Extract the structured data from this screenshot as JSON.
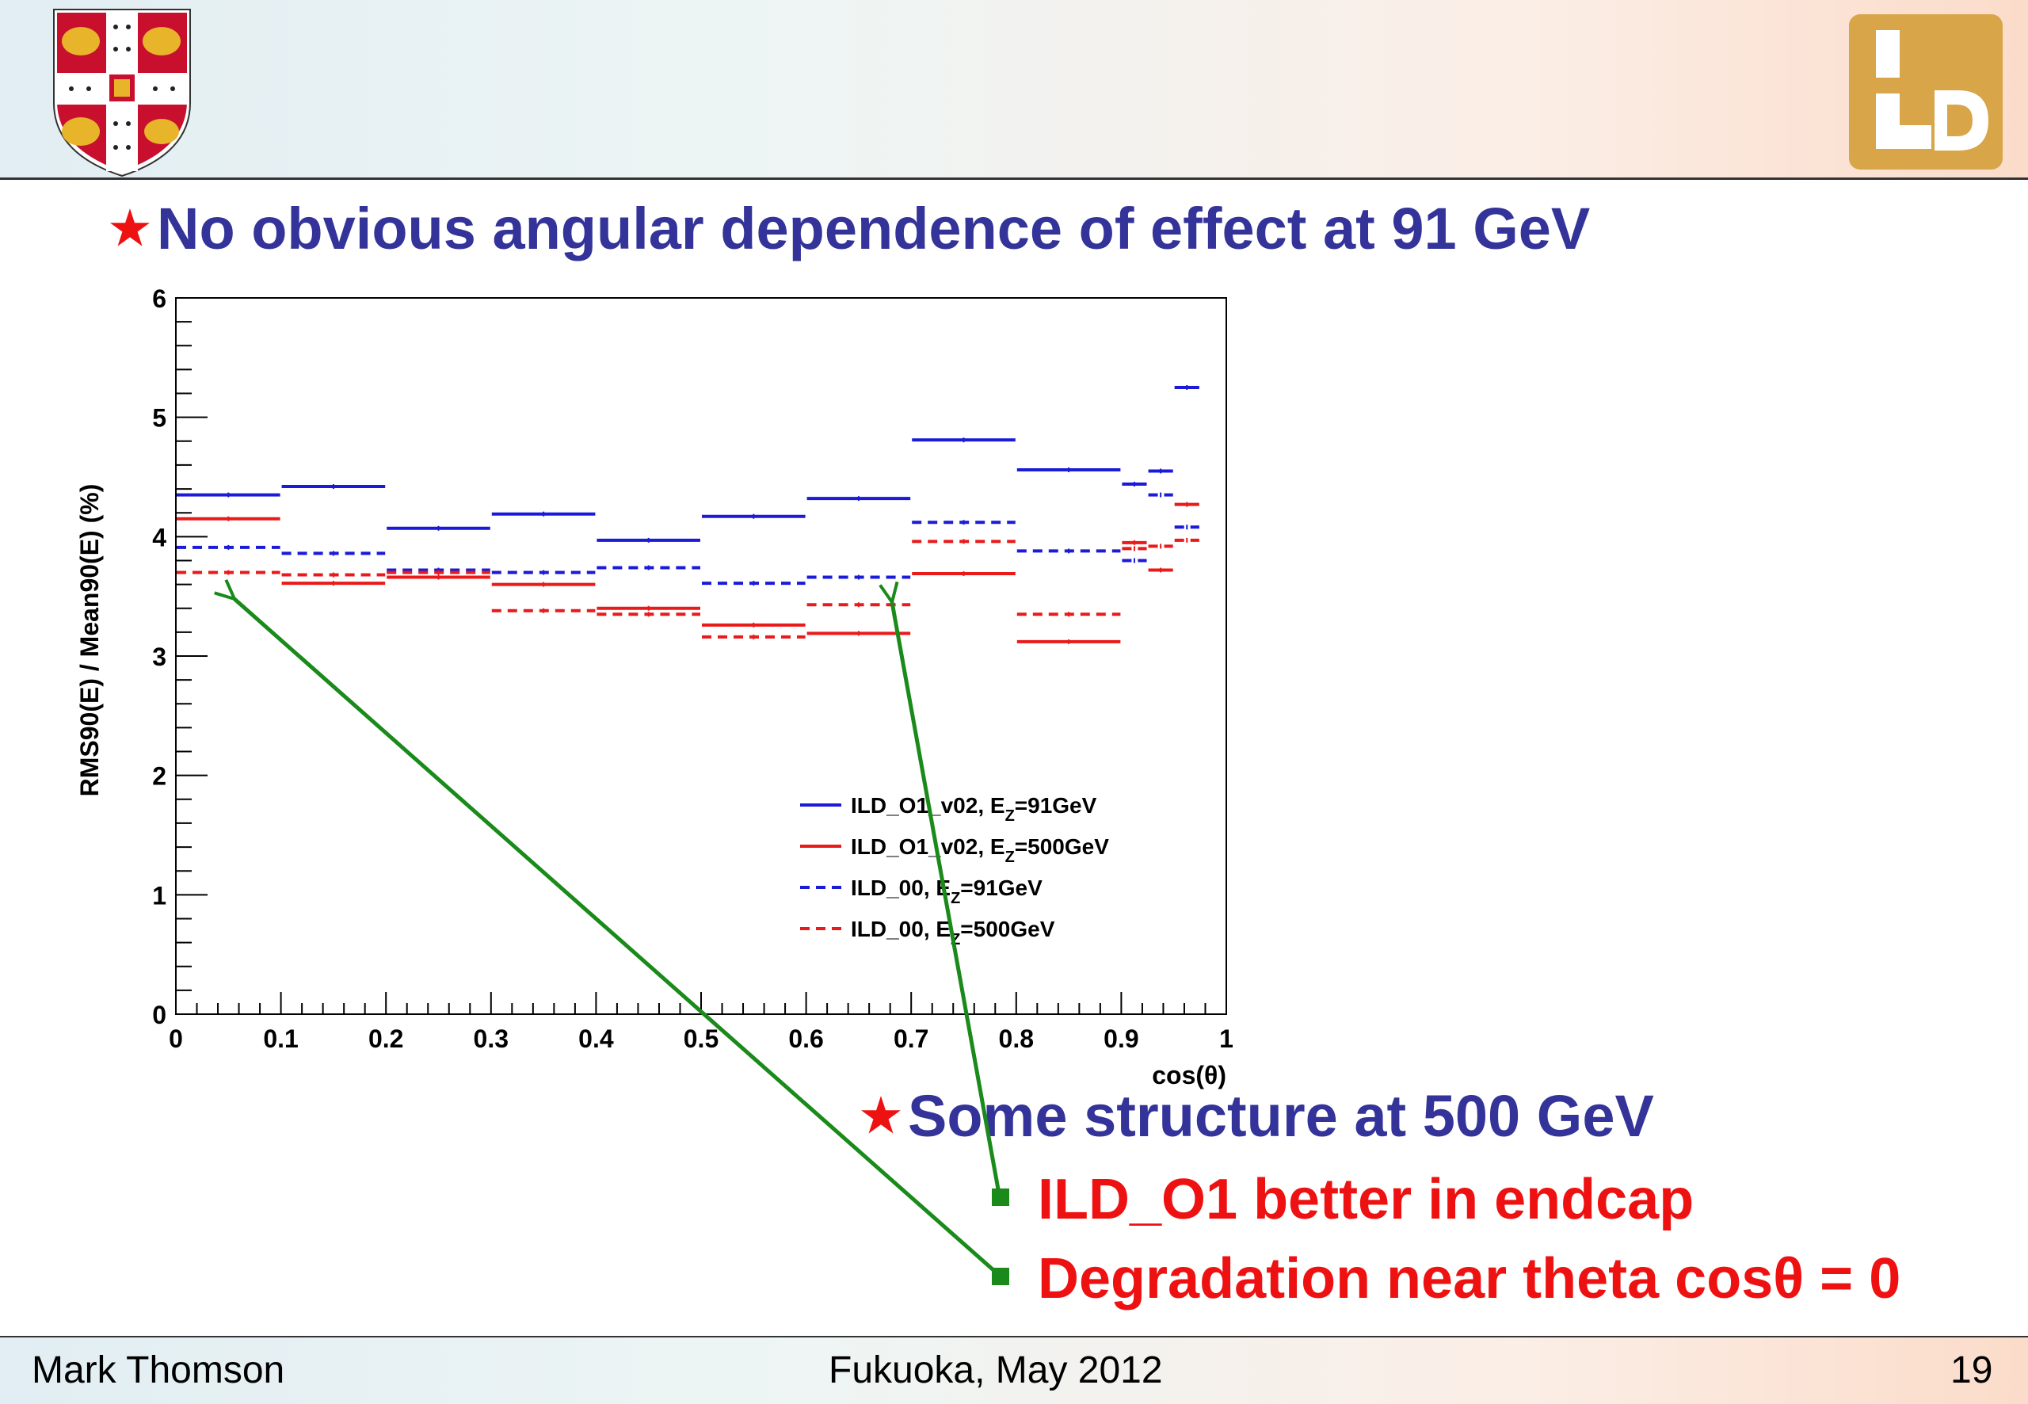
{
  "slide": {
    "bullet_star": "★",
    "bullet1": "No obvious angular dependence of effect at 91 GeV",
    "bullet2": "Some structure at 500 GeV",
    "sub1": "ILD_O1 better in endcap",
    "sub2": "Degradation near theta cosθ = 0",
    "footer_author": "Mark Thomson",
    "footer_venue": "Fukuoka, May 2012",
    "footer_page": "19",
    "colors": {
      "title_blue": "#333399",
      "accent_red": "#ee1111",
      "arrow_green": "#1a8a1a"
    }
  },
  "chart_data": {
    "type": "line",
    "style": "step histogram (horizontal bin segments)",
    "xlabel": "cos(θ)",
    "ylabel": "RMS90(E) / Mean90(E) (%)",
    "xlim": [
      0,
      1
    ],
    "ylim": [
      0,
      6
    ],
    "x_ticks": [
      "0",
      "0.1",
      "0.2",
      "0.3",
      "0.4",
      "0.5",
      "0.6",
      "0.7",
      "0.8",
      "0.9",
      "1"
    ],
    "y_ticks": [
      "0",
      "1",
      "2",
      "3",
      "4",
      "5",
      "6"
    ],
    "grid": false,
    "legend_position": "center-right",
    "series": [
      {
        "name": "ILD_O1_v02, E_Z=91GeV",
        "legend": {
          "main": "ILD_O1_v02, E",
          "sub": "Z",
          "tail": "=91GeV"
        },
        "color": "#1a1ad8",
        "dashed": false,
        "bins": [
          [
            0,
            0.1
          ],
          [
            0.1,
            0.2
          ],
          [
            0.2,
            0.3
          ],
          [
            0.3,
            0.4
          ],
          [
            0.4,
            0.5
          ],
          [
            0.5,
            0.6
          ],
          [
            0.6,
            0.7
          ],
          [
            0.7,
            0.8
          ],
          [
            0.8,
            0.9
          ],
          [
            0.9,
            0.925
          ],
          [
            0.925,
            0.95
          ],
          [
            0.95,
            0.975
          ]
        ],
        "values": [
          4.35,
          4.42,
          4.07,
          4.19,
          3.97,
          4.17,
          4.32,
          4.81,
          4.56,
          4.44,
          4.55,
          5.25
        ]
      },
      {
        "name": "ILD_O1_v02, E_Z=500GeV",
        "legend": {
          "main": "ILD_O1_v02, E",
          "sub": "Z",
          "tail": "=500GeV"
        },
        "color": "#e81a1a",
        "dashed": false,
        "bins": [
          [
            0,
            0.1
          ],
          [
            0.1,
            0.2
          ],
          [
            0.2,
            0.3
          ],
          [
            0.3,
            0.4
          ],
          [
            0.4,
            0.5
          ],
          [
            0.5,
            0.6
          ],
          [
            0.6,
            0.7
          ],
          [
            0.7,
            0.8
          ],
          [
            0.8,
            0.9
          ],
          [
            0.9,
            0.925
          ],
          [
            0.925,
            0.95
          ],
          [
            0.95,
            0.975
          ]
        ],
        "values": [
          4.15,
          3.61,
          3.66,
          3.6,
          3.4,
          3.26,
          3.19,
          3.69,
          3.12,
          3.95,
          3.72,
          4.27
        ]
      },
      {
        "name": "ILD_00, E_Z=91GeV",
        "legend": {
          "main": "ILD_00, E",
          "sub": "Z",
          "tail": "=91GeV"
        },
        "color": "#1a1ad8",
        "dashed": true,
        "bins": [
          [
            0,
            0.1
          ],
          [
            0.1,
            0.2
          ],
          [
            0.2,
            0.3
          ],
          [
            0.3,
            0.4
          ],
          [
            0.4,
            0.5
          ],
          [
            0.5,
            0.6
          ],
          [
            0.6,
            0.7
          ],
          [
            0.7,
            0.8
          ],
          [
            0.8,
            0.9
          ],
          [
            0.9,
            0.925
          ],
          [
            0.925,
            0.95
          ],
          [
            0.95,
            0.975
          ]
        ],
        "values": [
          3.91,
          3.86,
          3.72,
          3.7,
          3.74,
          3.61,
          3.66,
          4.12,
          3.88,
          3.8,
          4.35,
          4.08
        ]
      },
      {
        "name": "ILD_00, E_Z=500GeV",
        "legend": {
          "main": "ILD_00, E",
          "sub": "Z",
          "tail": "=500GeV"
        },
        "color": "#e81a1a",
        "dashed": true,
        "bins": [
          [
            0,
            0.1
          ],
          [
            0.1,
            0.2
          ],
          [
            0.2,
            0.3
          ],
          [
            0.3,
            0.4
          ],
          [
            0.4,
            0.5
          ],
          [
            0.5,
            0.6
          ],
          [
            0.6,
            0.7
          ],
          [
            0.7,
            0.8
          ],
          [
            0.8,
            0.9
          ],
          [
            0.9,
            0.925
          ],
          [
            0.925,
            0.95
          ],
          [
            0.95,
            0.975
          ]
        ],
        "values": [
          3.7,
          3.68,
          3.7,
          3.38,
          3.35,
          3.16,
          3.43,
          3.96,
          3.35,
          3.9,
          3.92,
          3.97
        ]
      }
    ]
  }
}
